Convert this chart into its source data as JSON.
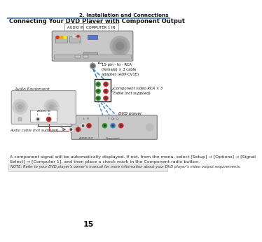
{
  "page_number": "15",
  "chapter_title": "2. Installation and Connections",
  "section_title": "Connecting Your DVD Player with Component Output",
  "bg_color": "#ffffff",
  "header_line_color": "#4a86c8",
  "body_text_line1": "A component signal will be automatically displayed. If not, from the menu, select [Setup] → [Options] → [Signal",
  "body_text_line2": "Select] → [Computer 1], and then place a check mark in the Component radio button.",
  "note_text": "NOTE: Refer to your DVD player’s owner’s manual for more information about your DVD player’s video output requirements.",
  "label_audio_in": "AUDIO IN",
  "label_comp1_in": "COMPUTER 1 IN",
  "label_adapter": "15-pin - to - RCA\n(female) × 3 cable\nadapter (ADP-CV1E)",
  "label_audio_equip": "Audio Equipment",
  "label_audio_cable": "Audio cable (not supplied)",
  "label_comp_cable": "Component video RCA × 3\ncable (not supplied)",
  "label_dvd": "DVD player",
  "label_audio_out": "AUDIO OUT",
  "label_component": "Component",
  "col_blue": "#3a7fc1",
  "col_red": "#cc2222",
  "col_green": "#229922",
  "col_black": "#333333",
  "col_gray_proj": "#c8c8c8",
  "col_gray_dvd": "#c8c8c8",
  "col_gray_aeq": "#e0e0e0"
}
